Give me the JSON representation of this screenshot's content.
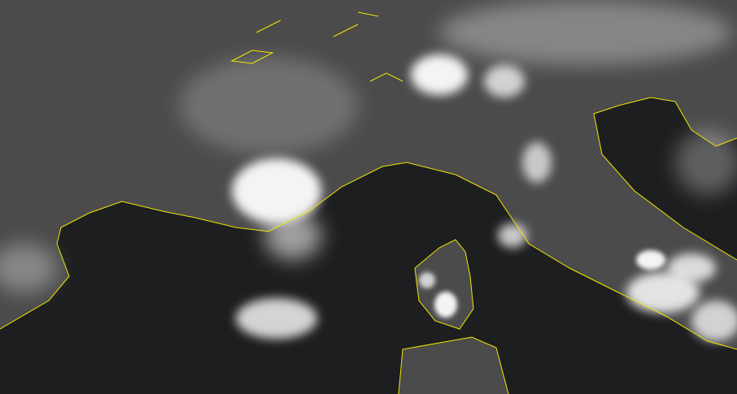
{
  "image": {
    "kind": "satellite-visible-imagery",
    "colors": {
      "land": "#4b4b4b",
      "sea": "#1d1e20",
      "coastline": "#f2e600",
      "cloud": "#f4f4f4"
    }
  }
}
